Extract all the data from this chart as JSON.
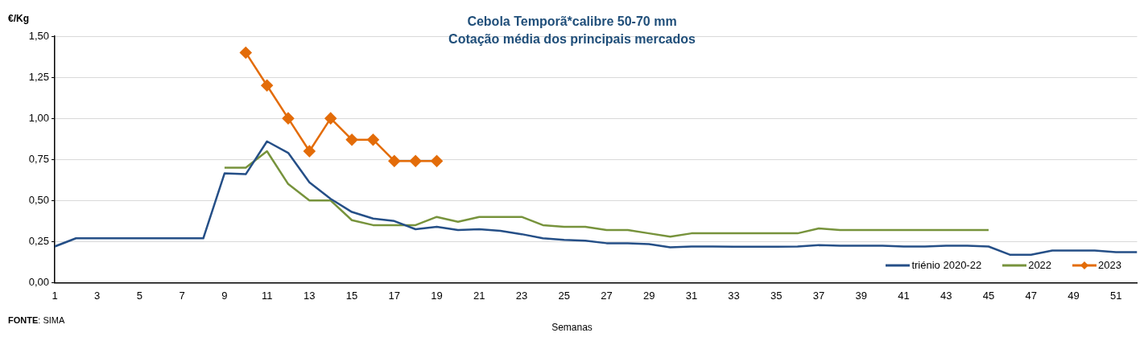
{
  "chart_data": {
    "type": "line",
    "title": "Cebola Temporã*calibre 50-70 mm",
    "subtitle": "Cotação média dos principais mercados",
    "xlabel": "Semanas",
    "ylabel": "€/Kg",
    "annotations": [
      "FONTE: SIMA"
    ],
    "xlim": [
      1,
      52
    ],
    "xticks": [
      1,
      3,
      5,
      7,
      9,
      11,
      13,
      15,
      17,
      19,
      21,
      23,
      25,
      27,
      29,
      31,
      33,
      35,
      37,
      39,
      41,
      43,
      45,
      47,
      49,
      51
    ],
    "ylim": [
      0,
      1.5
    ],
    "yticks": [
      {
        "value": 0,
        "label": "0,00"
      },
      {
        "value": 0.25,
        "label": "0,25"
      },
      {
        "value": 0.5,
        "label": "0,50"
      },
      {
        "value": 0.75,
        "label": "0,75"
      },
      {
        "value": 1,
        "label": "1,00"
      },
      {
        "value": 1.25,
        "label": "1,25"
      },
      {
        "value": 1.5,
        "label": "1,50"
      }
    ],
    "grid": "y",
    "legend": "bottom right",
    "line_style": "solid",
    "series": [
      {
        "name": "triénio 2020-22",
        "color": "#254f87",
        "marker": "none",
        "x": [
          1,
          2,
          3,
          4,
          5,
          6,
          7,
          8,
          9,
          10,
          11,
          12,
          13,
          14,
          15,
          16,
          17,
          18,
          19,
          20,
          21,
          22,
          23,
          24,
          25,
          26,
          27,
          28,
          29,
          30,
          31,
          32,
          33,
          34,
          35,
          36,
          37,
          38,
          39,
          40,
          41,
          42,
          43,
          44,
          45,
          46,
          47,
          48,
          49,
          50,
          51,
          52
        ],
        "values": [
          0.22,
          0.27,
          0.27,
          0.27,
          0.27,
          0.27,
          0.27,
          0.27,
          0.665,
          0.66,
          0.86,
          0.79,
          0.61,
          0.51,
          0.43,
          0.39,
          0.375,
          0.325,
          0.34,
          0.32,
          0.325,
          0.315,
          0.295,
          0.27,
          0.26,
          0.255,
          0.24,
          0.24,
          0.235,
          0.215,
          0.22,
          0.22,
          0.218,
          0.218,
          0.218,
          0.22,
          0.228,
          0.225,
          0.225,
          0.225,
          0.22,
          0.22,
          0.225,
          0.225,
          0.22,
          0.17,
          0.17,
          0.195,
          0.195,
          0.195,
          0.185,
          0.185
        ]
      },
      {
        "name": "2022",
        "color": "#77933c",
        "marker": "none",
        "x": [
          9,
          10,
          11,
          12,
          13,
          14,
          15,
          16,
          17,
          18,
          19,
          20,
          21,
          22,
          23,
          24,
          25,
          26,
          27,
          28,
          29,
          30,
          31,
          32,
          33,
          34,
          35,
          36,
          37,
          38,
          39,
          40,
          41,
          42,
          43,
          44,
          45
        ],
        "values": [
          0.7,
          0.7,
          0.8,
          0.6,
          0.5,
          0.5,
          0.38,
          0.35,
          0.35,
          0.35,
          0.4,
          0.37,
          0.4,
          0.4,
          0.4,
          0.35,
          0.34,
          0.34,
          0.32,
          0.32,
          0.3,
          0.28,
          0.3,
          0.3,
          0.3,
          0.3,
          0.3,
          0.3,
          0.33,
          0.32,
          0.32,
          0.32,
          0.32,
          0.32,
          0.32,
          0.32,
          0.32
        ]
      },
      {
        "name": "2023",
        "color": "#e36c09",
        "marker": "diamond",
        "x": [
          10,
          11,
          12,
          13,
          14,
          15,
          16,
          17,
          18,
          19
        ],
        "values": [
          1.4,
          1.2,
          1.0,
          0.8,
          1.0,
          0.87,
          0.87,
          0.74,
          0.74,
          0.74
        ]
      }
    ]
  }
}
